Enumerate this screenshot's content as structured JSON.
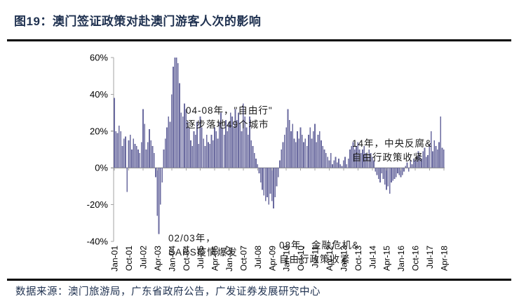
{
  "figure": {
    "title": "图19：澳门签证政策对赴澳门游客人次的影响",
    "source": "数据来源：澳门旅游局，广东省政府公告，广发证券发展研究中心"
  },
  "colors": {
    "title_text": "#1f3150",
    "rule": "#000000",
    "bar": "#6a6a9f",
    "axis": "#a3a3a3",
    "tick_text": "#000000"
  },
  "chart_data": {
    "type": "bar",
    "title": "",
    "xlabel": "",
    "ylabel": "",
    "unit": "percent YoY",
    "frequency": "monthly",
    "x_start": "Jan-01",
    "x_end": "Apr-18",
    "ylim": [
      -40,
      60
    ],
    "grid": false,
    "legend": "none",
    "y_tick_labels": [
      "60%",
      "40%",
      "20%",
      "0%",
      "-20%",
      "-40%"
    ],
    "y_tick_values": [
      60,
      40,
      20,
      0,
      -20,
      -40
    ],
    "x_tick_labels": [
      "Jan-01",
      "Oct-01",
      "Jul-02",
      "Apr-03",
      "Jan-04",
      "Oct-04",
      "Jul-05",
      "Apr-06",
      "Jan-07",
      "Oct-07",
      "Jul-08",
      "Apr-09",
      "Jan-10",
      "Oct-10",
      "Jul-11",
      "Apr-12",
      "Jan-13",
      "Oct-13",
      "Jul-14",
      "Apr-15",
      "Jan-16",
      "Oct-16",
      "Jul-17",
      "Apr-18"
    ],
    "x_tick_step_months": 9,
    "values": [
      38,
      20,
      19,
      23,
      20,
      12,
      16,
      17,
      -13,
      15,
      18,
      10,
      16,
      13,
      12,
      10,
      8,
      14,
      32,
      24,
      10,
      14,
      21,
      15,
      12,
      8,
      -5,
      -26,
      -36,
      -20,
      -8,
      10,
      16,
      22,
      28,
      25,
      40,
      55,
      60,
      60,
      57,
      46,
      30,
      28,
      35,
      32,
      25,
      22,
      15,
      12,
      20,
      18,
      25,
      13,
      28,
      22,
      16,
      12,
      18,
      14,
      13,
      18,
      15,
      22,
      20,
      16,
      25,
      30,
      22,
      18,
      26,
      20,
      25,
      30,
      28,
      22,
      32,
      26,
      30,
      24,
      20,
      35,
      28,
      22,
      18,
      28,
      15,
      12,
      8,
      5,
      2,
      -3,
      -8,
      -12,
      -15,
      -18,
      -16,
      -20,
      -14,
      -18,
      -22,
      -16,
      -10,
      -5,
      4,
      10,
      14,
      18,
      22,
      32,
      26,
      20,
      24,
      16,
      14,
      20,
      16,
      22,
      18,
      14,
      16,
      12,
      18,
      22,
      16,
      20,
      24,
      14,
      18,
      20,
      15,
      12,
      10,
      8,
      6,
      4,
      8,
      2,
      4,
      6,
      3,
      5,
      2,
      1,
      4,
      6,
      2,
      5,
      10,
      12,
      14,
      10,
      12,
      14,
      10,
      8,
      10,
      12,
      8,
      6,
      10,
      8,
      6,
      4,
      -2,
      -4,
      -6,
      -8,
      -3,
      -6,
      -9,
      -12,
      -10,
      -14,
      -8,
      -7,
      -6,
      -5,
      -3,
      -4,
      -5,
      -4,
      -2,
      1,
      3,
      -2,
      4,
      2,
      5,
      4,
      6,
      9,
      7,
      5,
      9,
      11,
      6,
      7,
      13,
      20,
      9,
      15,
      12,
      10,
      14,
      28,
      11,
      10
    ],
    "annotations": [
      {
        "line1": "04-08年，\"自由行\"",
        "line2": "逐步落地49个城市"
      },
      {
        "line1": "14年，中央反腐&",
        "line2": "自由行政策收紧"
      },
      {
        "line1": "02/03年，",
        "line2": "SARS疫情爆发"
      },
      {
        "line1": "08年，金融危机&",
        "line2": "自由行政策收紧"
      }
    ]
  }
}
